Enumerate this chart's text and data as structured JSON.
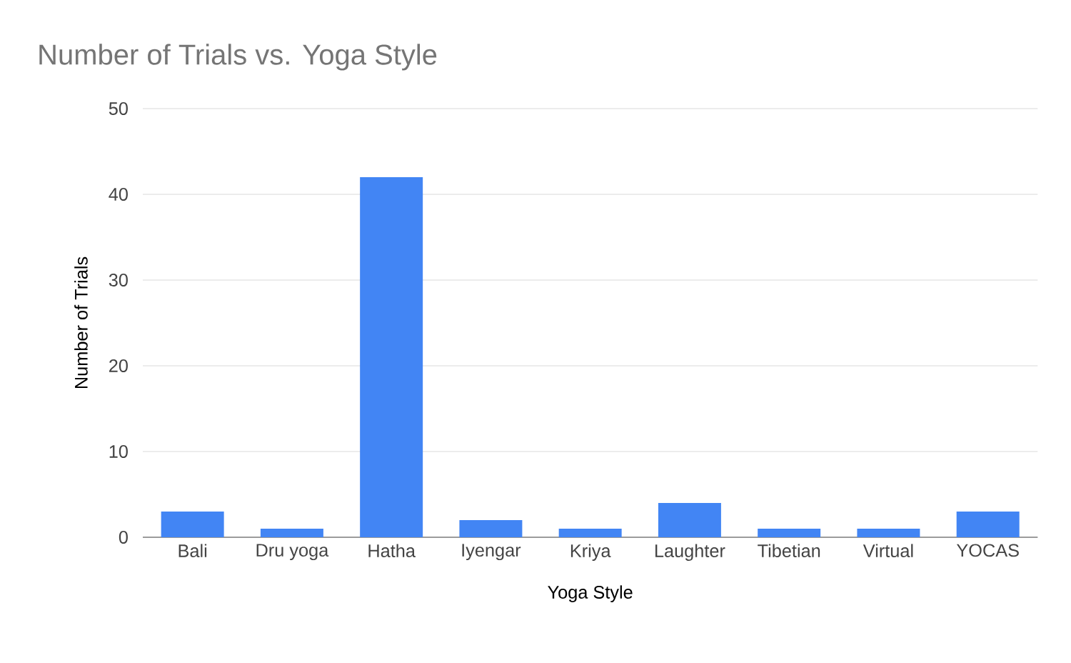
{
  "chart_data": {
    "type": "bar",
    "title": "Number of Trials vs. Yoga Style",
    "xlabel": "Yoga Style",
    "ylabel": "Number of Trials",
    "categories": [
      "Bali",
      "Dru yoga",
      "Hatha",
      "Iyengar",
      "Kriya",
      "Laughter",
      "Tibetian",
      "Virtual",
      "YOCAS"
    ],
    "values": [
      3,
      1,
      42,
      2,
      1,
      4,
      1,
      1,
      3
    ],
    "color": "#4285f4",
    "ylim": [
      0,
      50
    ],
    "yticks": [
      0,
      10,
      20,
      30,
      40,
      50
    ],
    "grid": "y"
  }
}
